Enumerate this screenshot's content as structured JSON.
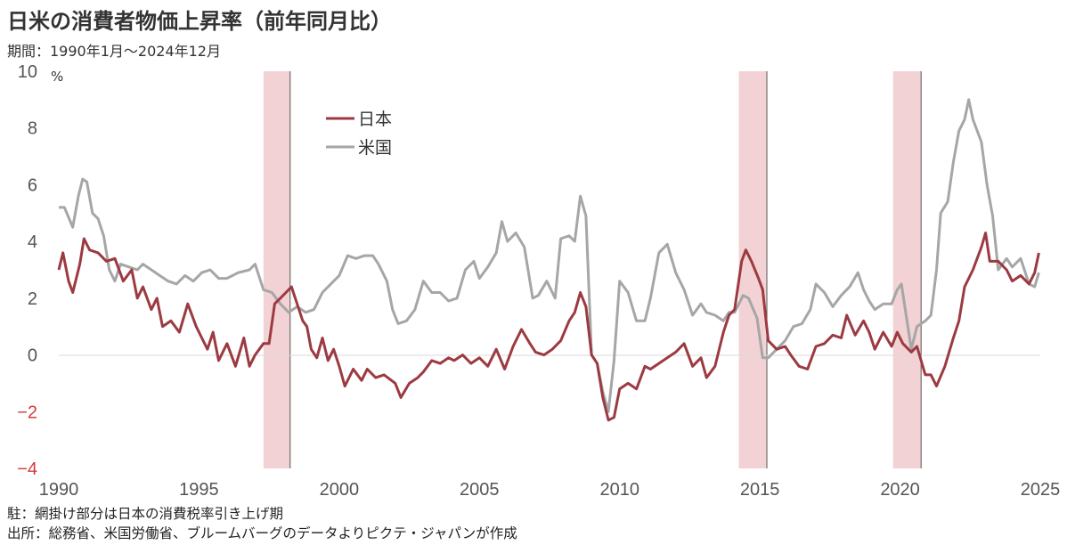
{
  "title": "日米の消費者物価上昇率（前年同月比）",
  "subtitle": "期間：1990年1月～2024年12月",
  "notes": {
    "note": "駐：網掛け部分は日本の消費税率引き上げ期",
    "source": "出所：総務省、米国労働省、ブルームバーグのデータよりピクテ・ジャパンが作成"
  },
  "chart_data": {
    "type": "line",
    "title": "日米の消費者物価上昇率（前年同月比）",
    "unit": "%",
    "xlim": [
      1990,
      2025
    ],
    "ylim": [
      -4,
      10
    ],
    "x_ticks": [
      "1990",
      "1995",
      "2000",
      "2005",
      "2010",
      "2015",
      "2020",
      "2025"
    ],
    "y_ticks": [
      "10",
      "8",
      "6",
      "4",
      "2",
      "0",
      "−2",
      "−4"
    ],
    "legend": "top-left",
    "shaded_periods": [
      {
        "start": 1997.3,
        "end": 1998.25
      },
      {
        "start": 2014.25,
        "end": 2015.25
      },
      {
        "start": 2019.75,
        "end": 2020.75
      }
    ],
    "series": [
      {
        "name": "日本",
        "color": "#9c3a41",
        "points": [
          [
            1990.0,
            3.0
          ],
          [
            1990.15,
            3.6
          ],
          [
            1990.35,
            2.6
          ],
          [
            1990.5,
            2.2
          ],
          [
            1990.75,
            3.2
          ],
          [
            1990.9,
            4.1
          ],
          [
            1991.1,
            3.7
          ],
          [
            1991.4,
            3.6
          ],
          [
            1991.7,
            3.3
          ],
          [
            1992.0,
            3.4
          ],
          [
            1992.3,
            2.6
          ],
          [
            1992.6,
            3.0
          ],
          [
            1992.8,
            2.0
          ],
          [
            1993.0,
            2.4
          ],
          [
            1993.3,
            1.6
          ],
          [
            1993.5,
            2.0
          ],
          [
            1993.7,
            1.0
          ],
          [
            1994.0,
            1.2
          ],
          [
            1994.3,
            0.8
          ],
          [
            1994.6,
            1.8
          ],
          [
            1994.9,
            1.0
          ],
          [
            1995.1,
            0.6
          ],
          [
            1995.3,
            0.2
          ],
          [
            1995.5,
            0.8
          ],
          [
            1995.7,
            -0.2
          ],
          [
            1996.0,
            0.4
          ],
          [
            1996.3,
            -0.4
          ],
          [
            1996.6,
            0.6
          ],
          [
            1996.8,
            -0.4
          ],
          [
            1997.0,
            0.0
          ],
          [
            1997.3,
            0.4
          ],
          [
            1997.5,
            0.4
          ],
          [
            1997.7,
            1.8
          ],
          [
            1997.9,
            2.0
          ],
          [
            1998.1,
            2.2
          ],
          [
            1998.3,
            2.4
          ],
          [
            1998.5,
            1.8
          ],
          [
            1998.7,
            1.2
          ],
          [
            1998.85,
            1.0
          ],
          [
            1999.0,
            0.2
          ],
          [
            1999.2,
            -0.1
          ],
          [
            1999.4,
            0.6
          ],
          [
            1999.6,
            -0.2
          ],
          [
            1999.8,
            0.2
          ],
          [
            2000.0,
            -0.4
          ],
          [
            2000.2,
            -1.1
          ],
          [
            2000.5,
            -0.5
          ],
          [
            2000.8,
            -0.9
          ],
          [
            2001.0,
            -0.5
          ],
          [
            2001.3,
            -0.8
          ],
          [
            2001.6,
            -0.7
          ],
          [
            2002.0,
            -1.0
          ],
          [
            2002.2,
            -1.5
          ],
          [
            2002.5,
            -1.0
          ],
          [
            2002.8,
            -0.8
          ],
          [
            2003.0,
            -0.6
          ],
          [
            2003.3,
            -0.2
          ],
          [
            2003.6,
            -0.3
          ],
          [
            2003.9,
            -0.1
          ],
          [
            2004.1,
            -0.2
          ],
          [
            2004.4,
            0.0
          ],
          [
            2004.7,
            -0.3
          ],
          [
            2005.0,
            -0.1
          ],
          [
            2005.3,
            -0.4
          ],
          [
            2005.6,
            0.2
          ],
          [
            2005.9,
            -0.5
          ],
          [
            2006.2,
            0.3
          ],
          [
            2006.5,
            0.9
          ],
          [
            2006.8,
            0.4
          ],
          [
            2007.0,
            0.1
          ],
          [
            2007.3,
            0.0
          ],
          [
            2007.6,
            0.2
          ],
          [
            2007.9,
            0.5
          ],
          [
            2008.2,
            1.2
          ],
          [
            2008.4,
            1.5
          ],
          [
            2008.6,
            2.2
          ],
          [
            2008.8,
            1.7
          ],
          [
            2009.0,
            0.0
          ],
          [
            2009.2,
            -0.3
          ],
          [
            2009.4,
            -1.5
          ],
          [
            2009.6,
            -2.3
          ],
          [
            2009.8,
            -2.2
          ],
          [
            2010.0,
            -1.2
          ],
          [
            2010.3,
            -1.0
          ],
          [
            2010.6,
            -1.2
          ],
          [
            2010.9,
            -0.4
          ],
          [
            2011.1,
            -0.5
          ],
          [
            2011.4,
            -0.3
          ],
          [
            2011.7,
            -0.1
          ],
          [
            2012.0,
            0.1
          ],
          [
            2012.3,
            0.4
          ],
          [
            2012.6,
            -0.4
          ],
          [
            2012.9,
            -0.1
          ],
          [
            2013.1,
            -0.8
          ],
          [
            2013.4,
            -0.4
          ],
          [
            2013.7,
            0.8
          ],
          [
            2013.9,
            1.4
          ],
          [
            2014.1,
            1.6
          ],
          [
            2014.35,
            3.3
          ],
          [
            2014.5,
            3.7
          ],
          [
            2014.7,
            3.3
          ],
          [
            2014.95,
            2.7
          ],
          [
            2015.1,
            2.3
          ],
          [
            2015.3,
            0.5
          ],
          [
            2015.6,
            0.2
          ],
          [
            2015.9,
            0.3
          ],
          [
            2016.1,
            0.0
          ],
          [
            2016.4,
            -0.4
          ],
          [
            2016.7,
            -0.5
          ],
          [
            2017.0,
            0.3
          ],
          [
            2017.3,
            0.4
          ],
          [
            2017.6,
            0.7
          ],
          [
            2017.9,
            0.6
          ],
          [
            2018.1,
            1.4
          ],
          [
            2018.4,
            0.7
          ],
          [
            2018.7,
            1.2
          ],
          [
            2018.9,
            0.8
          ],
          [
            2019.1,
            0.2
          ],
          [
            2019.4,
            0.8
          ],
          [
            2019.7,
            0.3
          ],
          [
            2019.9,
            0.8
          ],
          [
            2020.1,
            0.4
          ],
          [
            2020.4,
            0.1
          ],
          [
            2020.6,
            0.3
          ],
          [
            2020.9,
            -0.7
          ],
          [
            2021.1,
            -0.7
          ],
          [
            2021.3,
            -1.1
          ],
          [
            2021.6,
            -0.4
          ],
          [
            2021.9,
            0.6
          ],
          [
            2022.1,
            1.2
          ],
          [
            2022.3,
            2.4
          ],
          [
            2022.6,
            3.0
          ],
          [
            2022.9,
            3.8
          ],
          [
            2023.05,
            4.3
          ],
          [
            2023.2,
            3.3
          ],
          [
            2023.5,
            3.3
          ],
          [
            2023.8,
            3.0
          ],
          [
            2024.0,
            2.6
          ],
          [
            2024.3,
            2.8
          ],
          [
            2024.6,
            2.5
          ],
          [
            2024.8,
            2.9
          ],
          [
            2024.95,
            3.6
          ]
        ]
      },
      {
        "name": "米国",
        "color": "#a6a6a6",
        "points": [
          [
            1990.0,
            5.2
          ],
          [
            1990.2,
            5.2
          ],
          [
            1990.5,
            4.5
          ],
          [
            1990.7,
            5.6
          ],
          [
            1990.85,
            6.2
          ],
          [
            1991.0,
            6.1
          ],
          [
            1991.2,
            5.0
          ],
          [
            1991.4,
            4.8
          ],
          [
            1991.6,
            4.2
          ],
          [
            1991.8,
            3.0
          ],
          [
            1992.0,
            2.6
          ],
          [
            1992.2,
            3.2
          ],
          [
            1992.5,
            3.1
          ],
          [
            1992.8,
            3.0
          ],
          [
            1993.0,
            3.2
          ],
          [
            1993.3,
            3.0
          ],
          [
            1993.6,
            2.8
          ],
          [
            1993.9,
            2.6
          ],
          [
            1994.2,
            2.5
          ],
          [
            1994.5,
            2.8
          ],
          [
            1994.8,
            2.6
          ],
          [
            1995.1,
            2.9
          ],
          [
            1995.4,
            3.0
          ],
          [
            1995.7,
            2.7
          ],
          [
            1996.0,
            2.7
          ],
          [
            1996.4,
            2.9
          ],
          [
            1996.8,
            3.0
          ],
          [
            1997.0,
            3.2
          ],
          [
            1997.3,
            2.3
          ],
          [
            1997.6,
            2.2
          ],
          [
            1997.9,
            1.8
          ],
          [
            1998.2,
            1.5
          ],
          [
            1998.5,
            1.7
          ],
          [
            1998.8,
            1.5
          ],
          [
            1999.1,
            1.6
          ],
          [
            1999.4,
            2.2
          ],
          [
            1999.7,
            2.5
          ],
          [
            2000.0,
            2.8
          ],
          [
            2000.3,
            3.5
          ],
          [
            2000.6,
            3.4
          ],
          [
            2000.9,
            3.5
          ],
          [
            2001.2,
            3.5
          ],
          [
            2001.4,
            3.2
          ],
          [
            2001.7,
            2.6
          ],
          [
            2001.9,
            1.6
          ],
          [
            2002.1,
            1.1
          ],
          [
            2002.4,
            1.2
          ],
          [
            2002.7,
            1.6
          ],
          [
            2003.0,
            2.6
          ],
          [
            2003.3,
            2.2
          ],
          [
            2003.6,
            2.2
          ],
          [
            2003.9,
            1.9
          ],
          [
            2004.2,
            2.0
          ],
          [
            2004.5,
            3.0
          ],
          [
            2004.8,
            3.3
          ],
          [
            2005.0,
            2.7
          ],
          [
            2005.3,
            3.1
          ],
          [
            2005.6,
            3.6
          ],
          [
            2005.8,
            4.7
          ],
          [
            2006.0,
            4.0
          ],
          [
            2006.3,
            4.3
          ],
          [
            2006.6,
            3.8
          ],
          [
            2006.9,
            2.0
          ],
          [
            2007.1,
            2.1
          ],
          [
            2007.4,
            2.6
          ],
          [
            2007.7,
            2.0
          ],
          [
            2007.9,
            4.1
          ],
          [
            2008.2,
            4.2
          ],
          [
            2008.4,
            4.0
          ],
          [
            2008.6,
            5.6
          ],
          [
            2008.8,
            4.9
          ],
          [
            2009.0,
            0.0
          ],
          [
            2009.2,
            -0.3
          ],
          [
            2009.4,
            -1.3
          ],
          [
            2009.6,
            -2.0
          ],
          [
            2009.8,
            -0.2
          ],
          [
            2010.0,
            2.6
          ],
          [
            2010.3,
            2.2
          ],
          [
            2010.6,
            1.2
          ],
          [
            2010.9,
            1.2
          ],
          [
            2011.1,
            2.0
          ],
          [
            2011.4,
            3.6
          ],
          [
            2011.7,
            3.9
          ],
          [
            2012.0,
            2.9
          ],
          [
            2012.3,
            2.3
          ],
          [
            2012.6,
            1.4
          ],
          [
            2012.9,
            1.8
          ],
          [
            2013.1,
            1.5
          ],
          [
            2013.4,
            1.4
          ],
          [
            2013.7,
            1.2
          ],
          [
            2013.9,
            1.5
          ],
          [
            2014.1,
            1.5
          ],
          [
            2014.4,
            2.1
          ],
          [
            2014.6,
            2.0
          ],
          [
            2014.9,
            1.3
          ],
          [
            2015.1,
            -0.1
          ],
          [
            2015.3,
            -0.1
          ],
          [
            2015.6,
            0.2
          ],
          [
            2015.9,
            0.5
          ],
          [
            2016.2,
            1.0
          ],
          [
            2016.5,
            1.1
          ],
          [
            2016.8,
            1.6
          ],
          [
            2017.0,
            2.5
          ],
          [
            2017.3,
            2.2
          ],
          [
            2017.6,
            1.7
          ],
          [
            2017.9,
            2.1
          ],
          [
            2018.2,
            2.4
          ],
          [
            2018.5,
            2.9
          ],
          [
            2018.7,
            2.3
          ],
          [
            2018.9,
            1.9
          ],
          [
            2019.1,
            1.6
          ],
          [
            2019.4,
            1.8
          ],
          [
            2019.7,
            1.8
          ],
          [
            2019.9,
            2.3
          ],
          [
            2020.05,
            2.5
          ],
          [
            2020.2,
            1.5
          ],
          [
            2020.4,
            0.2
          ],
          [
            2020.6,
            1.0
          ],
          [
            2020.9,
            1.2
          ],
          [
            2021.1,
            1.4
          ],
          [
            2021.3,
            3.0
          ],
          [
            2021.45,
            5.0
          ],
          [
            2021.7,
            5.4
          ],
          [
            2021.9,
            6.8
          ],
          [
            2022.1,
            7.9
          ],
          [
            2022.3,
            8.3
          ],
          [
            2022.45,
            9.0
          ],
          [
            2022.6,
            8.3
          ],
          [
            2022.9,
            7.5
          ],
          [
            2023.1,
            6.0
          ],
          [
            2023.3,
            4.9
          ],
          [
            2023.5,
            3.0
          ],
          [
            2023.8,
            3.4
          ],
          [
            2024.0,
            3.1
          ],
          [
            2024.3,
            3.4
          ],
          [
            2024.6,
            2.5
          ],
          [
            2024.8,
            2.4
          ],
          [
            2024.95,
            2.9
          ]
        ]
      }
    ]
  }
}
